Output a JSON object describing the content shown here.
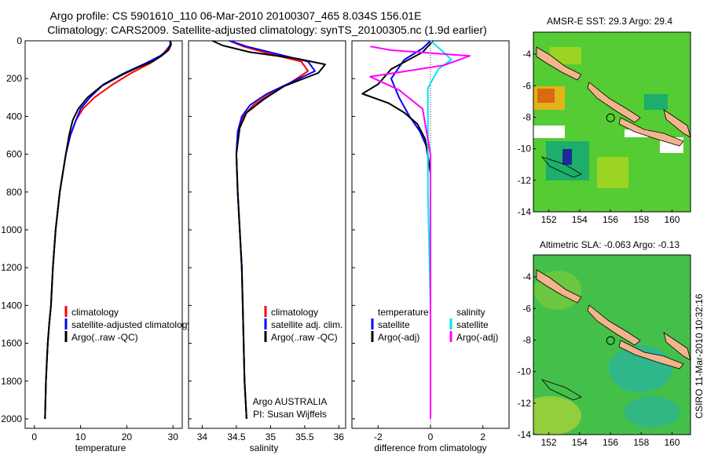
{
  "header": {
    "line1": "Argo profile: CS 5901610_110 06-Mar-2010 20100307_465 8.034S 156.01E",
    "line2": "Climatology: CARS2009. Satellite-adjusted climatology: synTS_20100305.nc (1.9d earlier)"
  },
  "footer_text": "CSIRO 11-Mar-2010 10:32:16",
  "colors": {
    "climatology": "#ff0000",
    "satellite": "#0000ff",
    "argo": "#000000",
    "salinity_satellite": "#00e5ee",
    "salinity_argo": "#ff00ff",
    "land": "#f2b48c",
    "sst_field": "#55cc33",
    "sla_field": "#44c04a"
  },
  "chart_data": [
    {
      "type": "line",
      "panel": "temperature",
      "xlabel": "temperature",
      "ylabel": "",
      "xlim": [
        -2,
        32
      ],
      "ylim": [
        2050,
        0
      ],
      "x_ticks": [
        0,
        10,
        20,
        30
      ],
      "y_ticks": [
        0,
        200,
        400,
        600,
        800,
        1000,
        1200,
        1400,
        1600,
        1800,
        2000
      ],
      "series": [
        {
          "name": "climatology",
          "color_key": "climatology",
          "x": [
            29.5,
            29.5,
            28.5,
            27.5,
            25,
            21,
            17,
            13,
            10.5,
            9,
            7.8,
            6.8,
            5.5,
            4.6,
            4,
            3.6,
            3.2,
            2.9,
            2.7,
            2.5,
            2.3
          ],
          "y": [
            0,
            20,
            50,
            80,
            120,
            170,
            230,
            300,
            360,
            420,
            500,
            600,
            800,
            1000,
            1200,
            1400,
            1500,
            1600,
            1700,
            1800,
            2000
          ]
        },
        {
          "name": "satellite-adjusted climatology",
          "color_key": "satellite",
          "x": [
            29.4,
            29.4,
            28.8,
            27.2,
            24,
            19.5,
            15,
            12,
            10,
            9,
            7.8,
            6.8,
            5.5,
            4.6,
            4,
            3.6,
            3.2,
            2.9,
            2.7,
            2.5,
            2.3
          ],
          "y": [
            0,
            20,
            50,
            80,
            120,
            170,
            230,
            300,
            360,
            420,
            500,
            600,
            800,
            1000,
            1200,
            1400,
            1500,
            1600,
            1700,
            1800,
            2000
          ]
        },
        {
          "name": "Argo(..raw -QC)",
          "color_key": "argo",
          "x": [
            29.4,
            29.6,
            29.0,
            27.5,
            25.5,
            22.5,
            19,
            14.5,
            11.5,
            9.5,
            8.3,
            7.5,
            6.8,
            5.5,
            4.6,
            4,
            3.6,
            3.2,
            2.9,
            2.7,
            2.5,
            2.3
          ],
          "y": [
            0,
            20,
            50,
            80,
            110,
            140,
            180,
            240,
            300,
            360,
            420,
            500,
            600,
            800,
            1000,
            1200,
            1400,
            1500,
            1600,
            1700,
            1800,
            2000
          ]
        }
      ]
    },
    {
      "type": "line",
      "panel": "salinity",
      "xlabel": "salinity",
      "ylabel": "",
      "xlim": [
        33.8,
        36.1
      ],
      "ylim": [
        2050,
        0
      ],
      "x_ticks": [
        34,
        34.5,
        35,
        35.5,
        36
      ],
      "y_ticks": [
        0,
        200,
        400,
        600,
        800,
        1000,
        1200,
        1400,
        1600,
        1800,
        2000
      ],
      "annotation": [
        "Argo AUSTRALIA",
        "PI: Susan Wijffels"
      ],
      "series": [
        {
          "name": "climatology",
          "color_key": "climatology",
          "x": [
            34.4,
            34.6,
            35.0,
            35.45,
            35.55,
            35.3,
            35.0,
            34.75,
            34.6,
            34.52,
            34.5,
            34.52,
            34.55,
            34.58,
            34.6,
            34.62,
            34.65
          ],
          "y": [
            0,
            30,
            70,
            110,
            160,
            220,
            280,
            340,
            400,
            480,
            600,
            800,
            1000,
            1200,
            1500,
            1800,
            2000
          ]
        },
        {
          "name": "satellite adj. clim.",
          "color_key": "satellite",
          "x": [
            34.4,
            34.65,
            35.1,
            35.55,
            35.65,
            35.3,
            34.95,
            34.7,
            34.58,
            34.52,
            34.5,
            34.52,
            34.55,
            34.58,
            34.6,
            34.62,
            34.65
          ],
          "y": [
            0,
            30,
            70,
            110,
            160,
            220,
            280,
            340,
            400,
            480,
            600,
            800,
            1000,
            1200,
            1500,
            1800,
            2000
          ]
        },
        {
          "name": "Argo(..raw -QC)",
          "color_key": "argo",
          "x": [
            34.15,
            34.3,
            34.7,
            35.4,
            35.8,
            35.7,
            35.2,
            34.9,
            34.65,
            34.55,
            34.5,
            34.52,
            34.55,
            34.58,
            34.6,
            34.62,
            34.65
          ],
          "y": [
            0,
            25,
            60,
            95,
            125,
            170,
            240,
            310,
            380,
            460,
            600,
            800,
            1000,
            1200,
            1500,
            1800,
            2000
          ]
        }
      ]
    },
    {
      "type": "line",
      "panel": "difference",
      "xlabel": "difference from climatology",
      "ylabel": "",
      "xlim": [
        -3,
        3
      ],
      "ylim": [
        2050,
        0
      ],
      "x_ticks": [
        -2,
        0,
        2
      ],
      "y_ticks": [
        0,
        200,
        400,
        600,
        800,
        1000,
        1200,
        1400,
        1600,
        1800,
        2000
      ],
      "legend_headers": [
        "temperature",
        "salinity"
      ],
      "series": [
        {
          "name": "satellite",
          "group": "temperature",
          "color_key": "satellite",
          "x": [
            0,
            -0.3,
            -1.0,
            -1.5,
            -1.2,
            -0.8,
            -0.4,
            -0.15,
            0,
            0,
            0,
            0
          ],
          "y": [
            0,
            40,
            100,
            200,
            300,
            400,
            480,
            560,
            700,
            1000,
            1500,
            2000
          ]
        },
        {
          "name": "Argo(-adj)",
          "group": "temperature",
          "color_key": "argo",
          "x": [
            0.1,
            -0.3,
            -1.5,
            -2.0,
            -2.6,
            -1.6,
            -1.0,
            -0.5,
            -0.2,
            0,
            0,
            0
          ],
          "y": [
            0,
            60,
            150,
            230,
            280,
            330,
            380,
            440,
            520,
            700,
            1200,
            2000
          ]
        },
        {
          "name": "satellite",
          "group": "salinity",
          "color_key": "salinity_satellite",
          "x": [
            0,
            0.5,
            0.8,
            0.3,
            -0.1,
            -0.1,
            -0.1,
            0,
            0
          ],
          "y": [
            0,
            60,
            100,
            150,
            250,
            500,
            800,
            1400,
            2000
          ]
        },
        {
          "name": "Argo(-adj)",
          "group": "salinity",
          "color_key": "salinity_argo",
          "x": [
            -2.3,
            -1.5,
            1.5,
            0.5,
            -2.3,
            -1.2,
            -0.3,
            0,
            0
          ],
          "y": [
            30,
            50,
            80,
            130,
            190,
            260,
            360,
            600,
            2000
          ]
        }
      ]
    }
  ],
  "maps": [
    {
      "title": "AMSR-E SST: 29.3 Argo: 29.4",
      "x_ticks": [
        "152",
        "154",
        "156",
        "158",
        "160"
      ],
      "y_ticks": [
        "-4",
        "-6",
        "-8",
        "-10",
        "-12",
        "-14"
      ],
      "float_position": [
        156.01,
        -8.034
      ]
    },
    {
      "title": "Altimetric SLA: -0.063 Argo: -0.13",
      "x_ticks": [
        "152",
        "154",
        "156",
        "158",
        "160"
      ],
      "y_ticks": [
        "-4",
        "-6",
        "-8",
        "-10",
        "-12",
        "-14"
      ],
      "float_position": [
        156.01,
        -8.034
      ]
    }
  ]
}
